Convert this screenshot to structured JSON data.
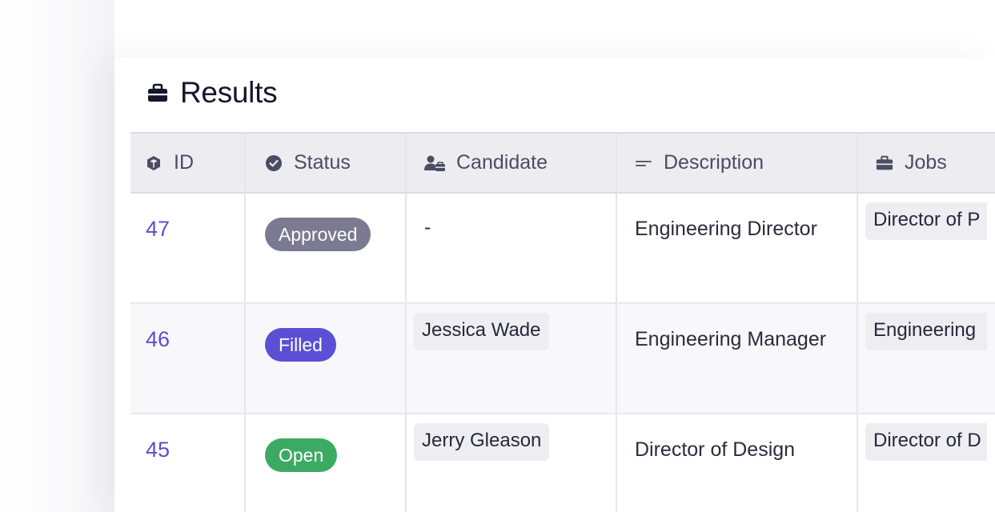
{
  "panel": {
    "title": "Results",
    "title_icon": "briefcase-icon"
  },
  "table": {
    "columns": [
      {
        "key": "id",
        "label": "ID",
        "icon": "cube-icon"
      },
      {
        "key": "status",
        "label": "Status",
        "icon": "check-circle-icon"
      },
      {
        "key": "candidate",
        "label": "Candidate",
        "icon": "user-badge-icon"
      },
      {
        "key": "description",
        "label": "Description",
        "icon": "text-lines-icon"
      },
      {
        "key": "jobs",
        "label": "Jobs",
        "icon": "briefcase-icon"
      }
    ],
    "rows": [
      {
        "id": "47",
        "status": "Approved",
        "candidate": "-",
        "description": "Engineering Director",
        "jobs": "Director of P"
      },
      {
        "id": "46",
        "status": "Filled",
        "candidate": "Jessica Wade",
        "description": "Engineering Manager",
        "jobs": "Engineering "
      },
      {
        "id": "45",
        "status": "Open",
        "candidate": "Jerry Gleason",
        "description": "Director of Design",
        "jobs": "Director of D"
      }
    ]
  },
  "colors": {
    "accent": "#5b4fd0",
    "status_approved": "#7a7a90",
    "status_filled": "#5b4fd6",
    "status_open": "#3daa63"
  }
}
